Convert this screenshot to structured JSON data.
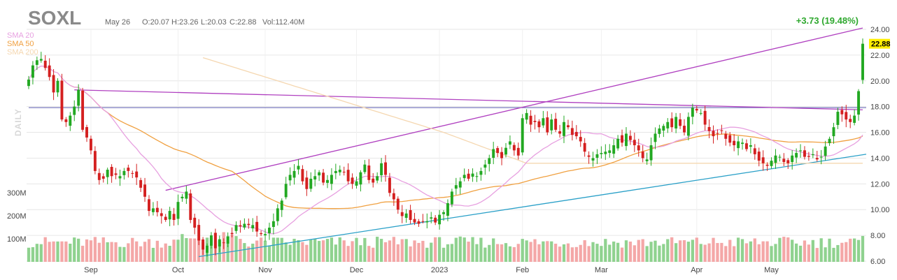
{
  "header": {
    "ticker": "SOXL",
    "date": "May 26",
    "open": "O:20.07",
    "high": "H:23.26",
    "low": "L:20.03",
    "close": "C:22.88",
    "volume": "Vol:112.40M",
    "change": "+3.73 (19.48%)",
    "period": "DAILY"
  },
  "legend": [
    {
      "label": "SMA 20",
      "color": "#e7a0e0"
    },
    {
      "label": "SMA 50",
      "color": "#f0a040"
    },
    {
      "label": "SMA 200",
      "color": "#f5d7b0"
    }
  ],
  "last_price": {
    "label": "22.88",
    "value": 22.88,
    "color": "#ffef00"
  },
  "colors": {
    "up": "#22a822",
    "down": "#d42020",
    "vol_up": "#8fd28f",
    "vol_down": "#f4a7a7",
    "grid": "#e6e6e6"
  },
  "chart_data": {
    "type": "candlestick",
    "title": "SOXL",
    "ylim": [
      6,
      24
    ],
    "y_ticks": [
      "24.00",
      "22.00",
      "20.00",
      "18.00",
      "16.00",
      "14.00",
      "12.00",
      "10.00",
      "8.00",
      "6.00"
    ],
    "x_ticks": [
      {
        "label": "Sep",
        "index": 15
      },
      {
        "label": "Oct",
        "index": 36
      },
      {
        "label": "Nov",
        "index": 57
      },
      {
        "label": "Dec",
        "index": 79
      },
      {
        "label": "2023",
        "index": 99
      },
      {
        "label": "Feb",
        "index": 119
      },
      {
        "label": "Mar",
        "index": 138
      },
      {
        "label": "Apr",
        "index": 161
      },
      {
        "label": "May",
        "index": 179
      }
    ],
    "volume_ticks": [
      {
        "label": "300M",
        "value": 300
      },
      {
        "label": "200M",
        "value": 200
      },
      {
        "label": "100M",
        "value": 100
      }
    ],
    "closes": [
      20.1,
      21.2,
      21.6,
      21.7,
      21.0,
      20.3,
      19.1,
      20.0,
      17.0,
      16.8,
      17.3,
      18.0,
      19.3,
      16.2,
      15.6,
      14.6,
      13.0,
      12.3,
      12.4,
      13.1,
      12.6,
      12.7,
      12.6,
      13.0,
      13.0,
      12.8,
      12.5,
      11.7,
      11.0,
      9.9,
      10.1,
      9.8,
      9.5,
      9.2,
      9.9,
      9.2,
      10.6,
      11.0,
      11.4,
      9.2,
      8.6,
      7.6,
      6.9,
      7.2,
      8.0,
      7.0,
      7.7,
      7.4,
      7.9,
      8.1,
      8.8,
      8.7,
      8.9,
      8.8,
      8.8,
      8.3,
      8.1,
      8.1,
      8.6,
      9.1,
      10.1,
      10.7,
      12.0,
      12.7,
      13.0,
      13.4,
      12.2,
      11.6,
      12.4,
      12.6,
      12.9,
      12.1,
      12.3,
      12.7,
      13.0,
      13.1,
      12.9,
      12.2,
      12.0,
      12.2,
      12.9,
      13.5,
      12.3,
      12.1,
      12.6,
      13.6,
      12.7,
      11.3,
      10.8,
      10.0,
      9.5,
      9.7,
      9.2,
      9.0,
      8.9,
      9.1,
      9.1,
      9.4,
      9.0,
      9.6,
      9.8,
      10.5,
      11.4,
      11.9,
      12.2,
      12.7,
      12.4,
      12.8,
      12.6,
      13.0,
      13.5,
      14.0,
      14.7,
      14.4,
      14.0,
      14.8,
      15.3,
      14.6,
      14.2,
      17.1,
      17.5,
      16.6,
      16.8,
      16.4,
      17.1,
      16.0,
      17.0,
      16.2,
      15.9,
      16.8,
      16.4,
      15.8,
      15.7,
      15.3,
      14.5,
      14.1,
      14.0,
      14.3,
      14.4,
      14.5,
      14.6,
      15.0,
      15.5,
      15.2,
      15.9,
      15.4,
      15.0,
      14.6,
      14.0,
      13.9,
      15.0,
      15.9,
      16.3,
      16.5,
      16.8,
      16.4,
      17.2,
      16.5,
      16.0,
      17.2,
      17.9,
      17.7,
      17.5,
      16.6,
      16.1,
      15.7,
      15.9,
      16.1,
      15.5,
      15.2,
      15.0,
      15.3,
      15.2,
      14.7,
      15.0,
      14.3,
      13.8,
      13.6,
      13.4,
      13.8,
      14.2,
      14.1,
      13.7,
      13.6,
      14.2,
      14.4,
      14.6,
      14.1,
      14.1,
      14.3,
      13.9,
      14.1,
      14.9,
      15.5,
      16.4,
      17.6,
      17.4,
      17.0,
      16.8,
      17.3,
      19.2,
      22.88
    ]
  }
}
